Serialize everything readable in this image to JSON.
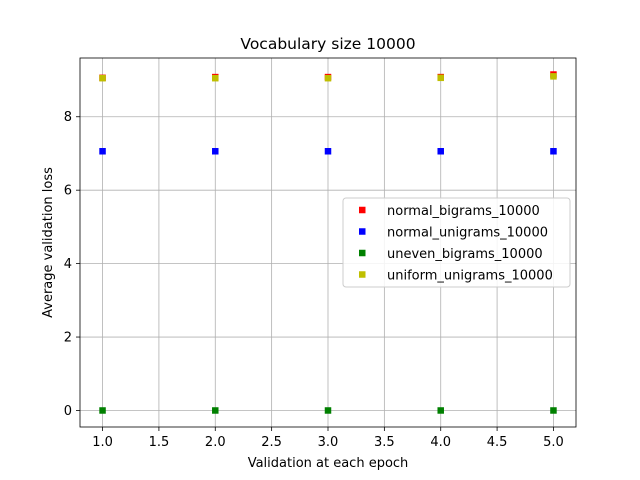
{
  "chart_data": {
    "type": "scatter",
    "title": "Vocabulary size 10000",
    "xlabel": "Validation at each epoch",
    "ylabel": "Average validation loss",
    "xlim": [
      0.8,
      5.2
    ],
    "ylim": [
      -0.45,
      9.6
    ],
    "xticks": [
      "1.0",
      "1.5",
      "2.0",
      "2.5",
      "3.0",
      "3.5",
      "4.0",
      "4.5",
      "5.0"
    ],
    "yticks": [
      "0",
      "2",
      "4",
      "6",
      "8"
    ],
    "grid": true,
    "legend_position": "center-right",
    "marker": "square",
    "series": [
      {
        "name": "normal_bigrams_10000",
        "color": "#ff0000",
        "x": [
          1,
          2,
          3,
          4,
          5
        ],
        "y": [
          9.06,
          9.08,
          9.08,
          9.08,
          9.15
        ]
      },
      {
        "name": "normal_unigrams_10000",
        "color": "#0000ff",
        "x": [
          1,
          2,
          3,
          4,
          5
        ],
        "y": [
          7.06,
          7.06,
          7.06,
          7.06,
          7.06
        ]
      },
      {
        "name": "uneven_bigrams_10000",
        "color": "#008000",
        "x": [
          1,
          2,
          3,
          4,
          5
        ],
        "y": [
          0.0,
          0.0,
          0.0,
          0.0,
          0.0
        ]
      },
      {
        "name": "uniform_unigrams_10000",
        "color": "#bfbf00",
        "x": [
          1,
          2,
          3,
          4,
          5
        ],
        "y": [
          9.05,
          9.05,
          9.05,
          9.06,
          9.1
        ]
      }
    ]
  }
}
